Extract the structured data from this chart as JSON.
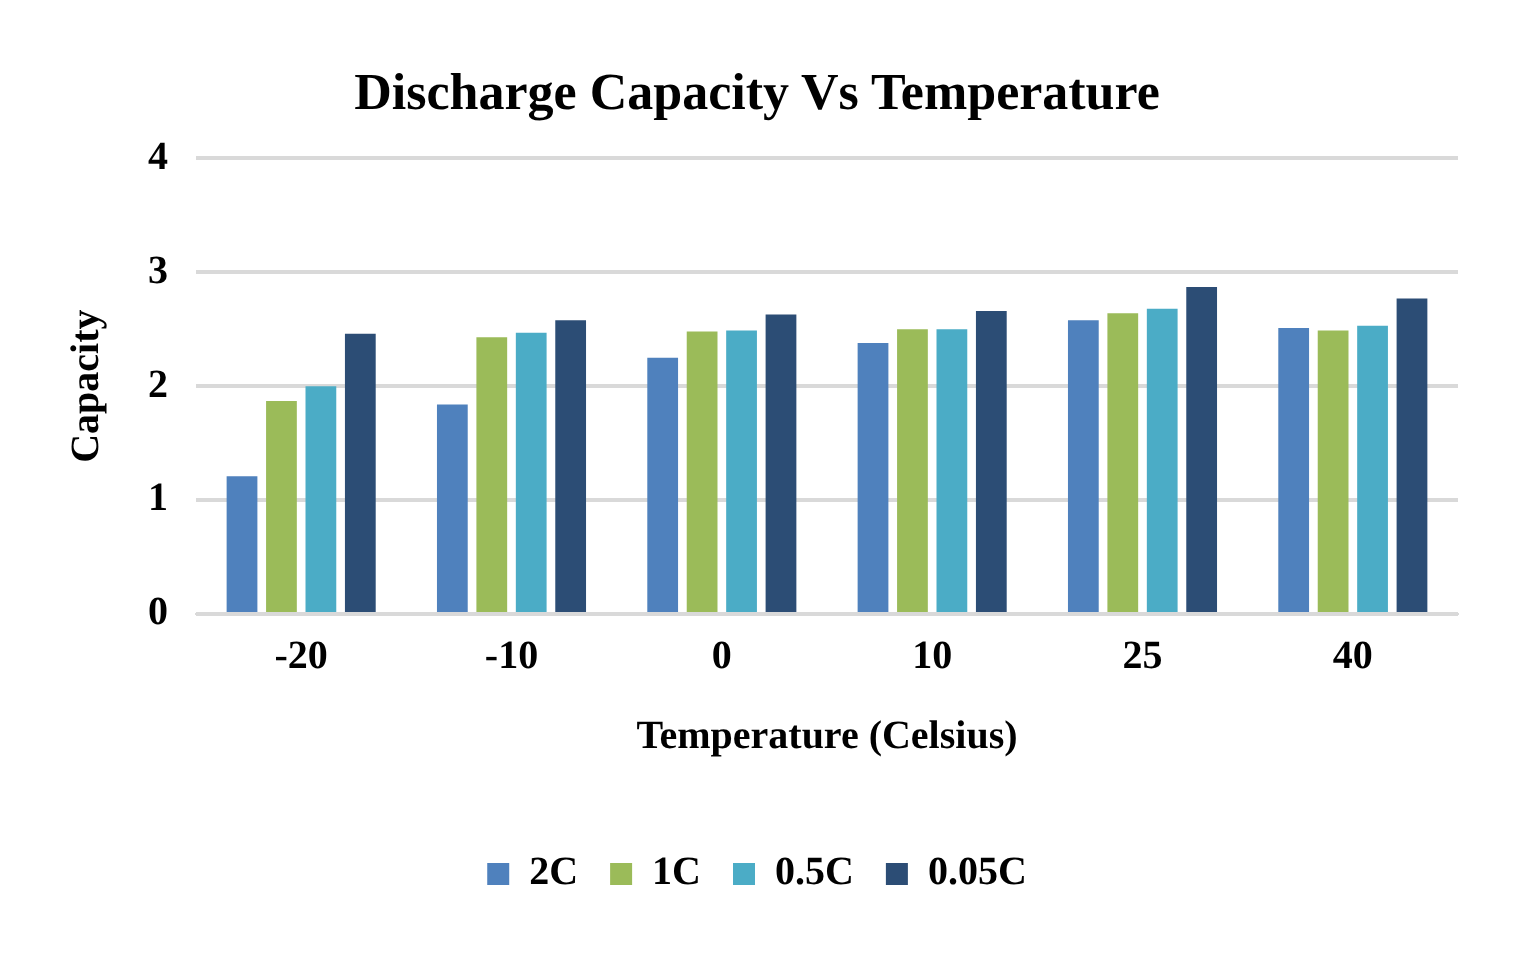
{
  "chart_data": {
    "type": "bar",
    "title": "Discharge Capacity Vs Temperature",
    "xlabel": "Temperature (Celsius)",
    "ylabel": "Capacity",
    "categories": [
      "-20",
      "-10",
      "0",
      "10",
      "25",
      "40"
    ],
    "series": [
      {
        "name": "2C",
        "color": "#4f81bd",
        "values": [
          1.21,
          1.84,
          2.25,
          2.38,
          2.58,
          2.51
        ]
      },
      {
        "name": "1C",
        "color": "#9bbb59",
        "values": [
          1.87,
          2.43,
          2.48,
          2.5,
          2.64,
          2.49
        ]
      },
      {
        "name": "0.5C",
        "color": "#4bacc6",
        "values": [
          2.0,
          2.47,
          2.49,
          2.5,
          2.68,
          2.53
        ]
      },
      {
        "name": "0.05C",
        "color": "#2c4d75",
        "values": [
          2.46,
          2.58,
          2.63,
          2.66,
          2.87,
          2.77
        ]
      }
    ],
    "ylim": [
      0,
      4
    ],
    "yticks": [
      0,
      1,
      2,
      3,
      4
    ],
    "grid": "y",
    "legend": "bottom"
  }
}
